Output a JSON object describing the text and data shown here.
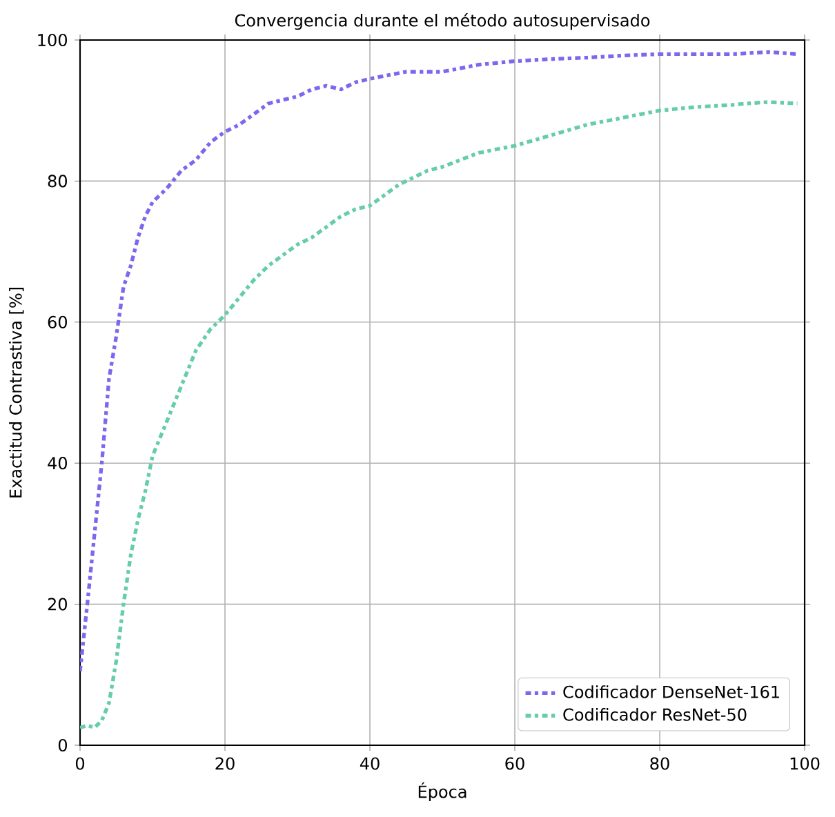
{
  "chart_data": {
    "type": "line",
    "title": "Convergencia durante el método autosupervisado",
    "xlabel": "Época",
    "ylabel": "Exactitud Contrastiva [%]",
    "xlim": [
      0,
      100
    ],
    "ylim": [
      0,
      100
    ],
    "xticks": [
      0,
      20,
      40,
      60,
      80,
      100
    ],
    "yticks": [
      0,
      20,
      40,
      60,
      80,
      100
    ],
    "grid": true,
    "legend": "bottom right",
    "line_style": "dashed",
    "marker": "none",
    "series": [
      {
        "name": "Codificador DenseNet-161",
        "color": "#7b68ee",
        "x": [
          0,
          1,
          2,
          3,
          4,
          5,
          6,
          7,
          8,
          9,
          10,
          12,
          14,
          16,
          18,
          20,
          22,
          24,
          26,
          28,
          30,
          32,
          34,
          36,
          38,
          40,
          45,
          50,
          55,
          60,
          65,
          70,
          75,
          80,
          85,
          90,
          95,
          99
        ],
        "values": [
          10.5,
          20,
          30,
          40,
          52,
          58,
          65,
          68,
          72,
          75,
          77,
          79,
          81.5,
          83,
          85.5,
          87,
          88,
          89.5,
          91,
          91.5,
          92,
          93,
          93.5,
          93,
          94,
          94.5,
          95.5,
          95.5,
          96.5,
          97,
          97.3,
          97.5,
          97.8,
          98,
          98,
          98,
          98.3,
          98
        ]
      },
      {
        "name": "Codificador ResNet-50",
        "color": "#66cdaa",
        "x": [
          0,
          1,
          2,
          3,
          4,
          5,
          6,
          7,
          8,
          9,
          10,
          12,
          14,
          16,
          18,
          20,
          22,
          24,
          26,
          28,
          30,
          32,
          34,
          36,
          38,
          40,
          42,
          44,
          46,
          48,
          50,
          55,
          60,
          65,
          70,
          75,
          80,
          85,
          90,
          92,
          95,
          99
        ],
        "values": [
          2.5,
          2.8,
          2.5,
          3.5,
          6,
          12,
          20,
          27,
          32,
          36,
          41,
          46,
          51,
          56,
          59,
          61,
          63.5,
          66,
          68,
          69.5,
          71,
          72,
          73.5,
          75,
          76,
          76.5,
          78,
          79.5,
          80.5,
          81.5,
          82,
          84,
          85,
          86.5,
          88,
          89,
          90,
          90.5,
          90.8,
          91,
          91.2,
          91
        ]
      }
    ]
  }
}
